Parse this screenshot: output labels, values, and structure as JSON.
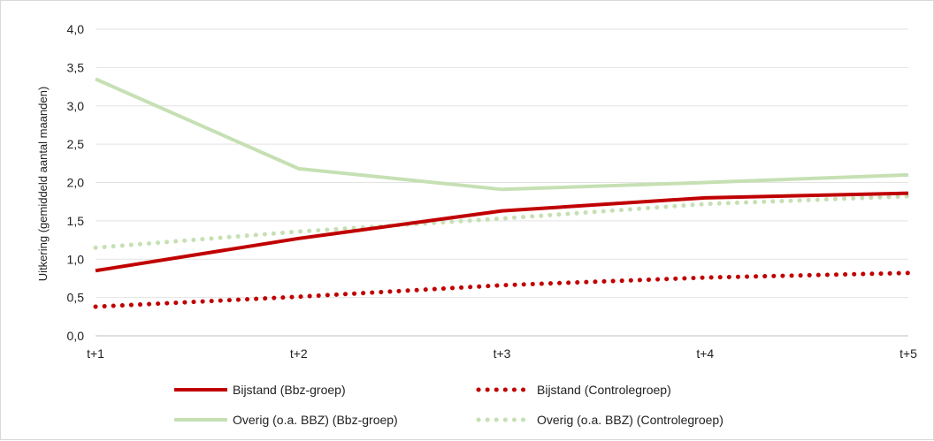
{
  "chart_data": {
    "type": "line",
    "title": "",
    "xlabel": "",
    "ylabel": "Uitkering (gemiddeld aantal maanden)",
    "categories": [
      "t+1",
      "t+2",
      "t+3",
      "t+4",
      "t+5"
    ],
    "ylim": [
      0,
      4
    ],
    "yticks": [
      "0,0",
      "0,5",
      "1,0",
      "1,5",
      "2,0",
      "2,5",
      "3,0",
      "3,5",
      "4,0"
    ],
    "grid": true,
    "legend_position": "bottom",
    "series": [
      {
        "name": "Bijstand (Bbz-groep)",
        "values": [
          0.85,
          1.27,
          1.63,
          1.8,
          1.86
        ],
        "color": "#c00000",
        "style": "solid"
      },
      {
        "name": "Bijstand (Controlegroep)",
        "values": [
          0.38,
          0.51,
          0.66,
          0.76,
          0.82
        ],
        "color": "#c00000",
        "style": "dotted"
      },
      {
        "name": "Overig (o.a. BBZ) (Bbz-groep)",
        "values": [
          3.35,
          2.18,
          1.91,
          2.0,
          2.1
        ],
        "color": "#c6e0b4",
        "style": "solid"
      },
      {
        "name": "Overig (o.a. BBZ) (Controlegroep)",
        "values": [
          1.15,
          1.36,
          1.53,
          1.72,
          1.82
        ],
        "color": "#c6e0b4",
        "style": "dotted"
      }
    ]
  }
}
